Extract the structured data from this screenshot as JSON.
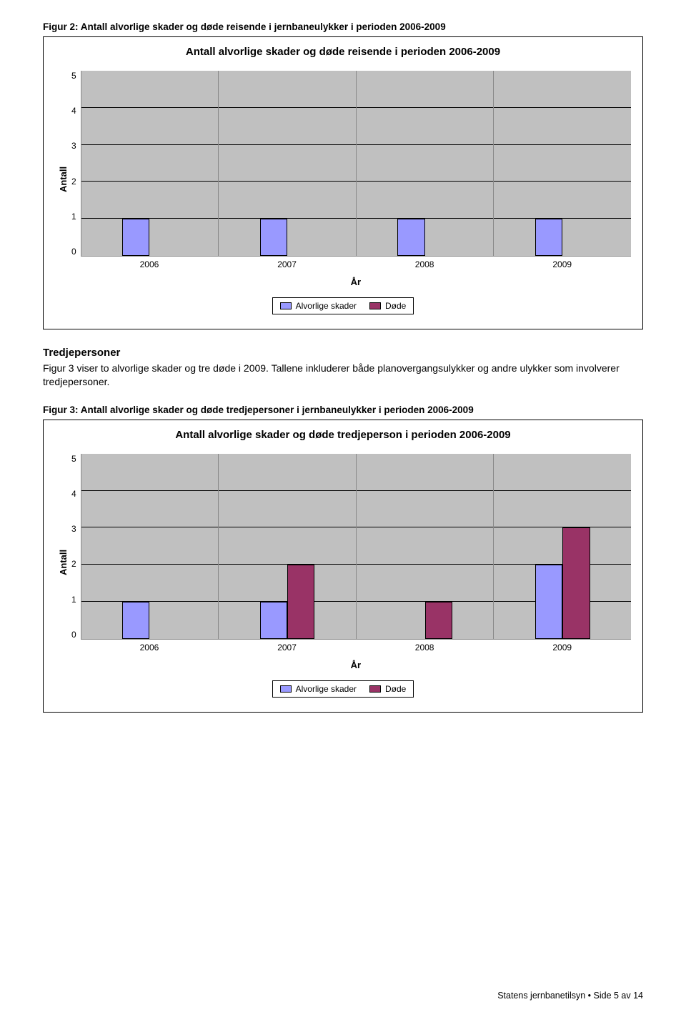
{
  "figure2": {
    "caption": "Figur 2: Antall alvorlige skader og døde reisende i jernbaneulykker i perioden 2006-2009",
    "chart": {
      "type": "bar",
      "title": "Antall alvorlige skader og døde reisende i perioden 2006-2009",
      "categories": [
        "2006",
        "2007",
        "2008",
        "2009"
      ],
      "series": [
        {
          "name": "Alvorlige skader",
          "color": "#9999ff",
          "values": [
            1,
            1,
            1,
            1
          ]
        },
        {
          "name": "Døde",
          "color": "#993366",
          "values": [
            0,
            0,
            0,
            0
          ]
        }
      ],
      "ylim": [
        0,
        5
      ],
      "ytick_step": 1,
      "ylabel": "Antall",
      "xlabel": "År",
      "background_color": "#c0c0c0",
      "grid_color": "#000000",
      "bar_width": 0.2,
      "title_fontsize": 15,
      "label_fontsize": 13
    }
  },
  "section": {
    "heading": "Tredjepersoner",
    "body": "Figur 3 viser to alvorlige skader og tre døde i 2009. Tallene inkluderer både planovergangsulykker og andre ulykker som involverer tredjepersoner."
  },
  "figure3": {
    "caption": "Figur 3: Antall alvorlige skader og døde tredjepersoner i jernbaneulykker i perioden 2006-2009",
    "chart": {
      "type": "bar",
      "title": "Antall alvorlige skader og døde tredjeperson i perioden 2006-2009",
      "categories": [
        "2006",
        "2007",
        "2008",
        "2009"
      ],
      "series": [
        {
          "name": "Alvorlige skader",
          "color": "#9999ff",
          "values": [
            1,
            1,
            0,
            2
          ]
        },
        {
          "name": "Døde",
          "color": "#993366",
          "values": [
            0,
            2,
            1,
            3
          ]
        }
      ],
      "ylim": [
        0,
        5
      ],
      "ytick_step": 1,
      "ylabel": "Antall",
      "xlabel": "År",
      "background_color": "#c0c0c0",
      "grid_color": "#000000",
      "bar_width": 0.2,
      "title_fontsize": 15,
      "label_fontsize": 13
    }
  },
  "footer": "Statens jernbanetilsyn • Side 5 av 14"
}
